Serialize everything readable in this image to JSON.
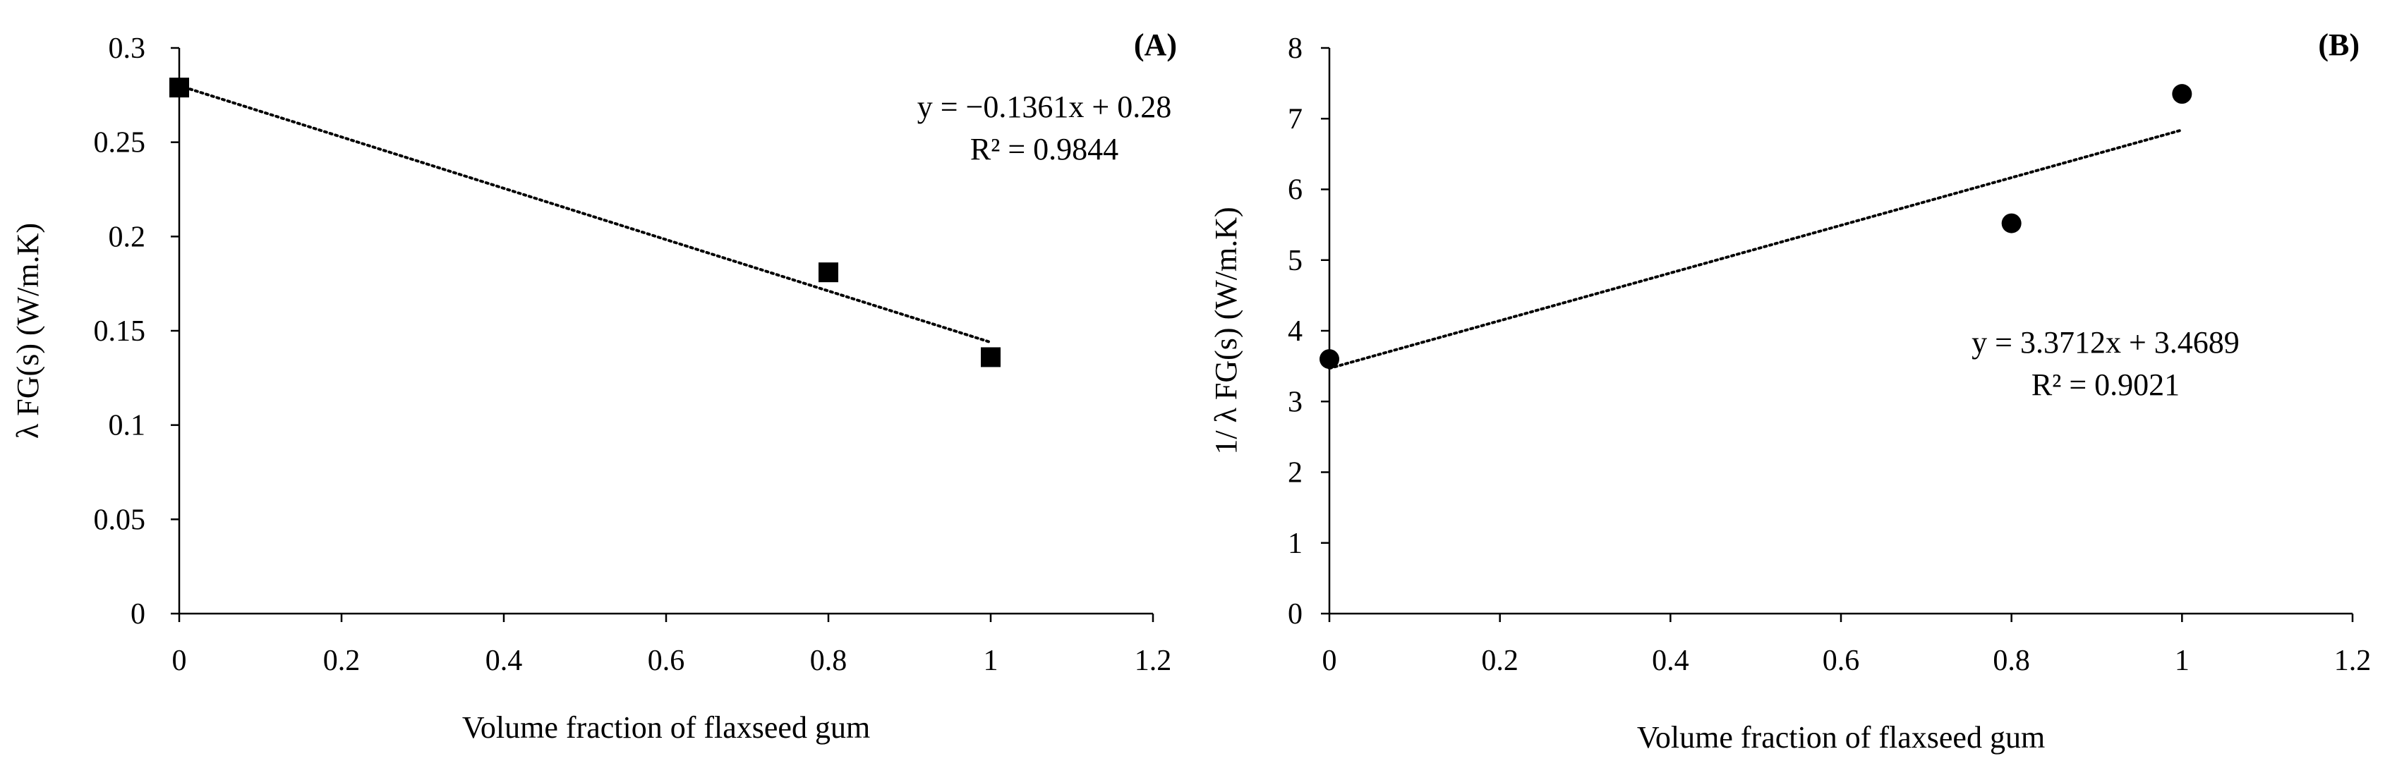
{
  "chart_data": [
    {
      "type": "scatter",
      "panel_label": "(A)",
      "xlabel": "Volume fraction of flaxseed gum",
      "ylabel": "λ FG(s) (W/m.K)",
      "xlim": [
        0,
        1.2
      ],
      "ylim": [
        0,
        0.3
      ],
      "xticks": [
        0,
        0.2,
        0.4,
        0.6,
        0.8,
        1,
        1.2
      ],
      "yticks": [
        0,
        0.05,
        0.1,
        0.15,
        0.2,
        0.25,
        0.3
      ],
      "xtick_labels": [
        "0",
        "0.2",
        "0.4",
        "0.6",
        "0.8",
        "1",
        "1.2"
      ],
      "ytick_labels": [
        "0",
        "0.05",
        "0.1",
        "0.15",
        "0.2",
        "0.25",
        "0.3"
      ],
      "marker": "square",
      "grid": false,
      "series": [
        {
          "name": "λ FG(s)",
          "x": [
            0,
            0.8,
            1
          ],
          "y": [
            0.279,
            0.181,
            0.136
          ]
        }
      ],
      "trendline": {
        "slope": -0.1361,
        "intercept": 0.28,
        "x_range": [
          0,
          1
        ],
        "style": "dotted",
        "equation": "y = −0.1361x + 0.28",
        "r2": "R² = 0.9844"
      }
    },
    {
      "type": "scatter",
      "panel_label": "(B)",
      "xlabel": "Volume fraction of flaxseed gum",
      "ylabel": "1/ λ FG(s) (W/m.K)",
      "xlim": [
        0,
        1.2
      ],
      "ylim": [
        0,
        8
      ],
      "xticks": [
        0,
        0.2,
        0.4,
        0.6,
        0.8,
        1,
        1.2
      ],
      "yticks": [
        0,
        1,
        2,
        3,
        4,
        5,
        6,
        7,
        8
      ],
      "xtick_labels": [
        "0",
        "0.2",
        "0.4",
        "0.6",
        "0.8",
        "1",
        "1.2"
      ],
      "ytick_labels": [
        "0",
        "1",
        "2",
        "3",
        "4",
        "5",
        "6",
        "7",
        "8"
      ],
      "marker": "circle",
      "grid": false,
      "series": [
        {
          "name": "1/λ FG(s)",
          "x": [
            0,
            0.8,
            1
          ],
          "y": [
            3.6,
            5.52,
            7.35
          ]
        }
      ],
      "trendline": {
        "slope": 3.3712,
        "intercept": 3.4689,
        "x_range": [
          0,
          1
        ],
        "style": "dotted",
        "equation": "y = 3.3712x + 3.4689",
        "r2": "R² = 0.9021"
      }
    }
  ]
}
